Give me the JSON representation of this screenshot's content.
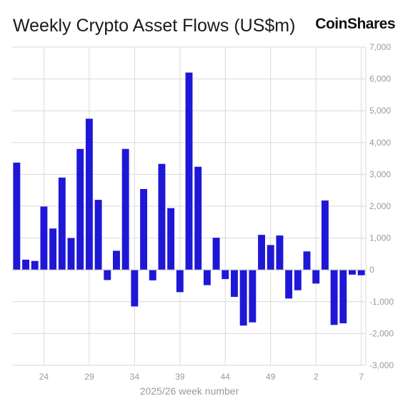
{
  "header": {
    "title": "Weekly Crypto Asset Flows (US$m)",
    "logo": "CoinShares"
  },
  "colors": {
    "bar": "#1f17d6",
    "grid": "#d9d9d9",
    "axis_text": "#9a9a9a"
  },
  "chart_data": {
    "type": "bar",
    "title": "Weekly Crypto Asset Flows (US$m)",
    "xlabel": "2025/26 week number",
    "ylabel": "",
    "ylim": [
      -3000,
      7000
    ],
    "yticks": [
      7000,
      6000,
      5000,
      4000,
      3000,
      2000,
      1000,
      0,
      -1000,
      -2000,
      -3000
    ],
    "ytick_labels": [
      "7,000",
      "6,000",
      "5,000",
      "4,000",
      "3,000",
      "2,000",
      "1,000",
      "0",
      "-1,000",
      "-2,000",
      "-3,000"
    ],
    "xtick_labels": [
      "24",
      "29",
      "34",
      "39",
      "44",
      "49",
      "2",
      "7"
    ],
    "xtick_indices": [
      3,
      8,
      13,
      18,
      23,
      28,
      33,
      38
    ],
    "grid": true,
    "categories": [
      "21",
      "22",
      "23",
      "24",
      "25",
      "26",
      "27",
      "28",
      "29",
      "30",
      "31",
      "32",
      "33",
      "34",
      "35",
      "36",
      "37",
      "38",
      "39",
      "40",
      "41",
      "42",
      "43",
      "44",
      "45",
      "46",
      "47",
      "48",
      "49",
      "50",
      "51",
      "52",
      "1",
      "2",
      "3",
      "4",
      "5",
      "6",
      "7"
    ],
    "values": [
      3370,
      320,
      280,
      1990,
      1300,
      2900,
      1000,
      3800,
      4750,
      2200,
      -320,
      600,
      3800,
      -1150,
      2540,
      -330,
      3330,
      1940,
      -700,
      6200,
      3240,
      -480,
      1010,
      -290,
      -850,
      -1750,
      -1650,
      1100,
      780,
      1080,
      -900,
      -640,
      580,
      -430,
      2180,
      -1730,
      -1680,
      -150,
      -170
    ]
  }
}
